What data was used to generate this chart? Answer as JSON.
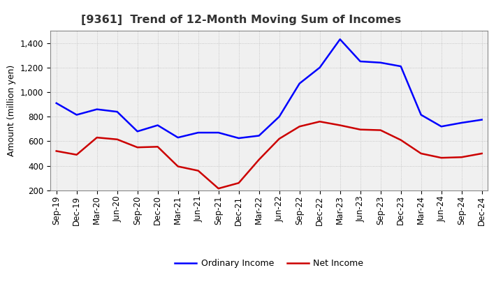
{
  "title": "[9361]  Trend of 12-Month Moving Sum of Incomes",
  "ylabel": "Amount (million yen)",
  "x_labels": [
    "Sep-19",
    "Dec-19",
    "Mar-20",
    "Jun-20",
    "Sep-20",
    "Dec-20",
    "Mar-21",
    "Jun-21",
    "Sep-21",
    "Dec-21",
    "Mar-22",
    "Jun-22",
    "Sep-22",
    "Dec-22",
    "Mar-23",
    "Jun-23",
    "Sep-23",
    "Dec-23",
    "Mar-24",
    "Jun-24",
    "Sep-24",
    "Dec-24"
  ],
  "ordinary_income": [
    910,
    815,
    860,
    840,
    680,
    730,
    630,
    670,
    670,
    625,
    645,
    800,
    1070,
    1200,
    1430,
    1250,
    1240,
    1210,
    815,
    720,
    750,
    775
  ],
  "net_income": [
    520,
    490,
    630,
    615,
    550,
    555,
    395,
    360,
    215,
    260,
    450,
    620,
    720,
    760,
    730,
    695,
    690,
    610,
    500,
    465,
    470,
    500
  ],
  "ordinary_color": "#0000FF",
  "net_color": "#CC0000",
  "ylim": [
    200,
    1500
  ],
  "yticks": [
    200,
    400,
    600,
    800,
    1000,
    1200,
    1400
  ],
  "background_color": "#FFFFFF",
  "plot_bg_color": "#F0F0F0",
  "grid_color": "#BBBBBB",
  "title_color": "#333333",
  "title_fontsize": 11.5,
  "axis_label_fontsize": 9,
  "tick_fontsize": 8.5,
  "legend_fontsize": 9,
  "line_width": 1.8
}
